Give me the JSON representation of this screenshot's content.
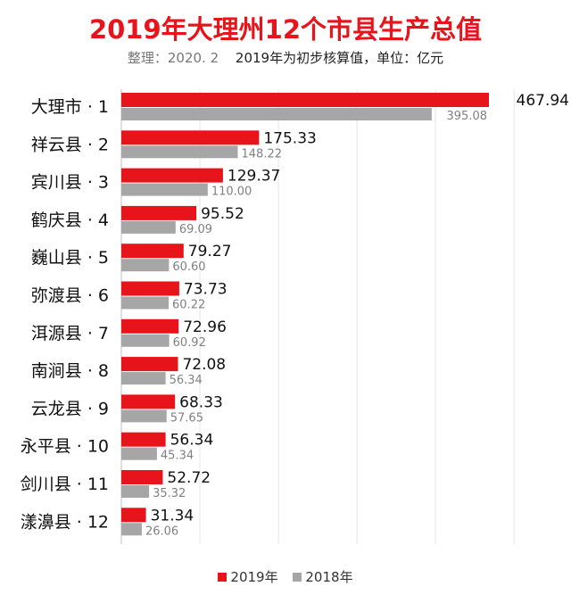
{
  "title": "2019年大理州12个市县生产总值",
  "subtitle_note": "整理：2020. 2",
  "subtitle_text": "2019年为初步核算值，单位：亿元",
  "colors": {
    "s2019": "#e8141c",
    "s2018": "#a6a6a6",
    "grid": "#e6e6e6"
  },
  "chart_data": {
    "type": "bar",
    "orientation": "horizontal",
    "categories": [
      "大理市 · 1",
      "祥云县 · 2",
      "宾川县 · 3",
      "鹤庆县 · 4",
      "巍山县 · 5",
      "弥渡县 · 6",
      "洱源县 · 7",
      "南涧县 · 8",
      "云龙县 · 9",
      "永平县 · 10",
      "剑川县 · 11",
      "漾濞县 · 12"
    ],
    "series": [
      {
        "name": "2019年",
        "values": [
          467.94,
          175.33,
          129.37,
          95.52,
          79.27,
          73.73,
          72.96,
          72.08,
          68.33,
          56.34,
          52.72,
          31.34
        ]
      },
      {
        "name": "2018年",
        "values": [
          395.08,
          148.22,
          110.0,
          69.09,
          60.6,
          60.22,
          60.92,
          56.34,
          57.65,
          45.34,
          35.32,
          26.06
        ]
      }
    ],
    "value_labels_2019": [
      "467.94",
      "175.33",
      "129.37",
      "95.52",
      "79.27",
      "73.73",
      "72.96",
      "72.08",
      "68.33",
      "56.34",
      "52.72",
      "31.34"
    ],
    "value_labels_2018": [
      "395.08",
      "148.22",
      "110.00",
      "69.09",
      "60.60",
      "60.22",
      "60.92",
      "56.34",
      "57.65",
      "45.34",
      "35.32",
      "26.06"
    ],
    "xlim": [
      0,
      500
    ],
    "grid": true,
    "legend": "bottom"
  }
}
